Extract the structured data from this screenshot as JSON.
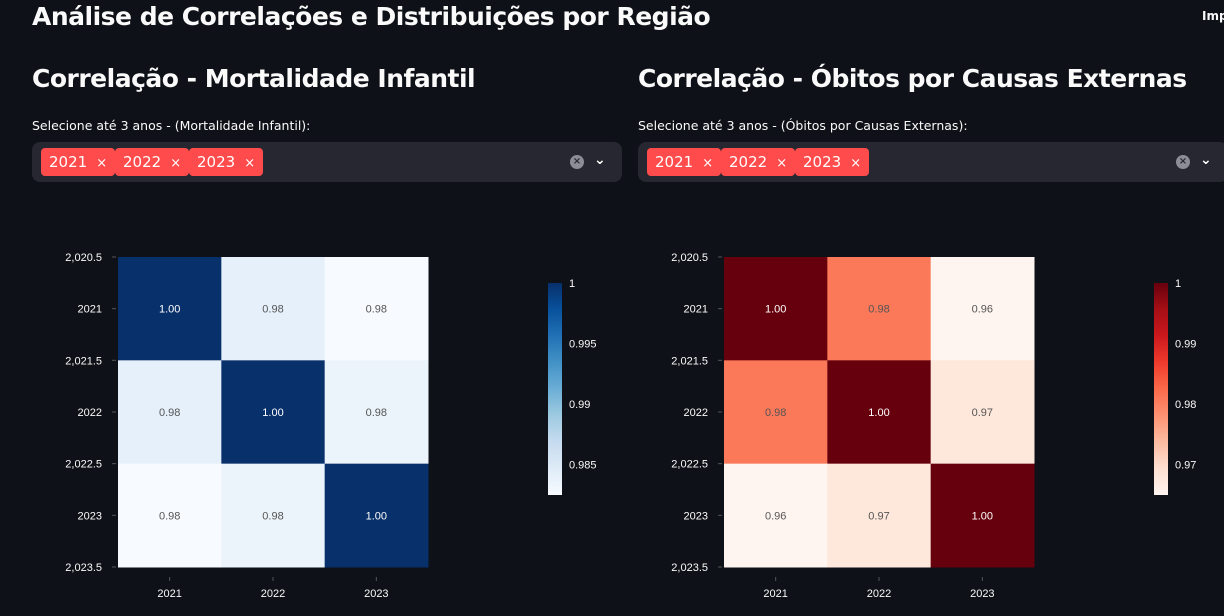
{
  "page": {
    "title": "Análise de Correlações e Distribuições por Região",
    "topright": "Imp"
  },
  "panels": [
    {
      "title": "Correlação - Mortalidade Infantil",
      "label": "Selecione até 3 anos - (Mortalidade Infantil):",
      "tags": [
        "2021",
        "2022",
        "2023"
      ]
    },
    {
      "title": "Correlação - Óbitos por Causas Externas",
      "label": "Selecione até 3 anos - (Óbitos por Causas Externas):",
      "tags": [
        "2021",
        "2022",
        "2023"
      ]
    }
  ],
  "icons": {
    "tag_remove": "×",
    "clear": "×",
    "dropdown": "chevron-down-icon"
  },
  "chart_data": [
    {
      "type": "heatmap",
      "title": "Correlação - Mortalidade Infantil",
      "colorscale": "Blues",
      "x": [
        "2021",
        "2022",
        "2023"
      ],
      "y": [
        "2021",
        "2022",
        "2023"
      ],
      "values": [
        [
          1.0,
          0.984,
          0.9825
        ],
        [
          0.984,
          1.0,
          0.9835
        ],
        [
          0.9825,
          0.9835,
          1.0
        ]
      ],
      "labels": [
        [
          "1.00",
          "0.98",
          "0.98"
        ],
        [
          "0.98",
          "1.00",
          "0.98"
        ],
        [
          "0.98",
          "0.98",
          "1.00"
        ]
      ],
      "yticks": [
        "2,020.5",
        "2021",
        "2,021.5",
        "2022",
        "2,022.5",
        "2023",
        "2,023.5"
      ],
      "xticks": [
        "2021",
        "2022",
        "2023"
      ],
      "colorbar": {
        "range": [
          0.9825,
          1.0
        ],
        "ticks": [
          "1",
          "0.995",
          "0.99",
          "0.985"
        ],
        "tickvals": [
          1,
          0.995,
          0.99,
          0.985
        ]
      }
    },
    {
      "type": "heatmap",
      "title": "Correlação - Óbitos por Causas Externas",
      "colorscale": "Reds",
      "x": [
        "2021",
        "2022",
        "2023"
      ],
      "y": [
        "2021",
        "2022",
        "2023"
      ],
      "values": [
        [
          1.0,
          0.981,
          0.965
        ],
        [
          0.981,
          1.0,
          0.968
        ],
        [
          0.965,
          0.968,
          1.0
        ]
      ],
      "labels": [
        [
          "1.00",
          "0.98",
          "0.96"
        ],
        [
          "0.98",
          "1.00",
          "0.97"
        ],
        [
          "0.96",
          "0.97",
          "1.00"
        ]
      ],
      "yticks": [
        "2,020.5",
        "2021",
        "2,021.5",
        "2022",
        "2,022.5",
        "2023",
        "2,023.5"
      ],
      "xticks": [
        "2021",
        "2022",
        "2023"
      ],
      "colorbar": {
        "range": [
          0.965,
          1.0
        ],
        "ticks": [
          "1",
          "0.99",
          "0.98",
          "0.97"
        ],
        "tickvals": [
          1,
          0.99,
          0.98,
          0.97
        ]
      }
    }
  ]
}
